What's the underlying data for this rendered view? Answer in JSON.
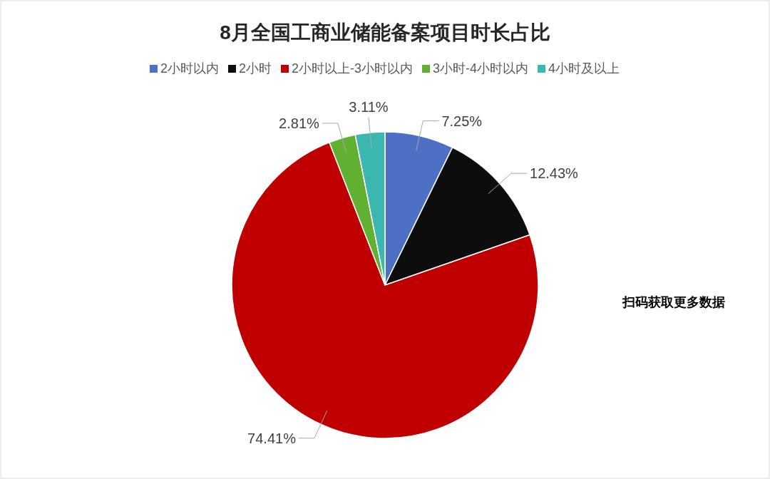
{
  "chart_data": {
    "type": "pie",
    "title": "8月全国工商业储能备案项目时长占比",
    "categories": [
      "2小时以内",
      "2小时",
      "2小时以上-3小时以内",
      "3小时-4小时以内",
      "4小时及以上"
    ],
    "values": [
      7.25,
      12.43,
      74.41,
      2.81,
      3.11
    ],
    "colors": [
      "#4e70c4",
      "#0d0d0d",
      "#c00000",
      "#62b032",
      "#3cb7b0"
    ],
    "value_labels": [
      "7.25%",
      "12.43%",
      "74.41%",
      "2.81%",
      "3.11%"
    ],
    "legend": "top",
    "annotations": [
      "扫码获取更多数据"
    ]
  }
}
